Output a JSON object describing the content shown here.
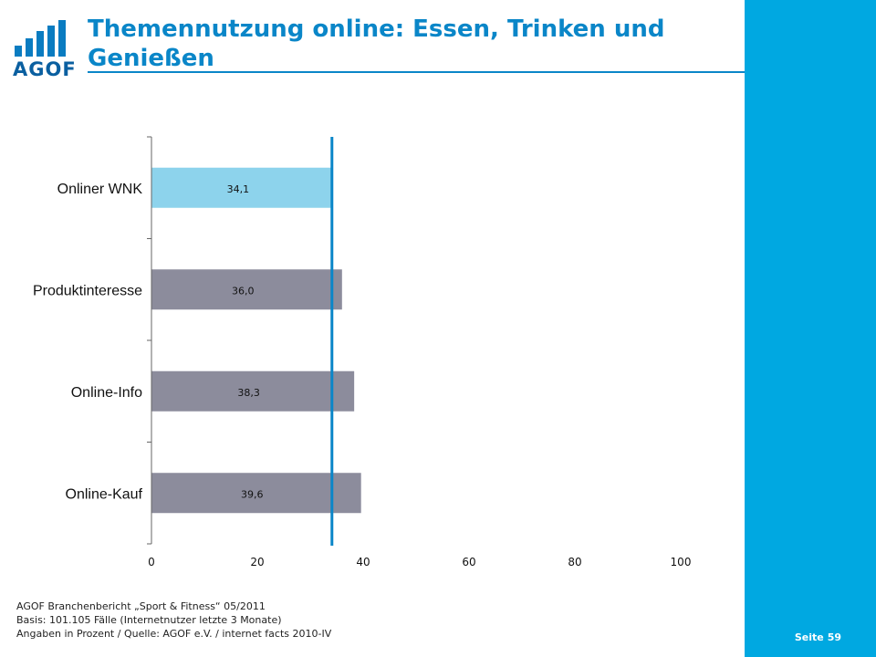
{
  "header": {
    "title": "Themennutzung online: Essen, Trinken und Genießen",
    "logo_text": "AGOF"
  },
  "footer": {
    "line1": "AGOF Branchenbericht „Sport & Fitness“ 05/2011",
    "line2": "Basis: 101.105 Fälle (Internetnutzer letzte 3 Monate)",
    "line3": "Angaben in Prozent / Quelle: AGOF e.V. / internet facts 2010-IV"
  },
  "page": {
    "label": "Seite",
    "number": "59"
  },
  "colors": {
    "accent": "#00a8e1",
    "title": "#0a86c8",
    "bar_highlight": "#8dd3ec",
    "bar_default": "#8c8c9c",
    "reference_line": "#0a86c8"
  },
  "chart_data": {
    "type": "bar",
    "orientation": "horizontal",
    "categories": [
      "Onliner WNK",
      "Produktinteresse",
      "Online-Info",
      "Online-Kauf"
    ],
    "values": [
      34.1,
      36.0,
      38.3,
      39.6
    ],
    "value_labels": [
      "34,1",
      "36,0",
      "38,3",
      "39,6"
    ],
    "xlim": [
      0,
      100
    ],
    "xticks": [
      0,
      20,
      40,
      60,
      80,
      100
    ],
    "reference_line_value": 34.1,
    "highlight_index": 0,
    "grid": false
  }
}
